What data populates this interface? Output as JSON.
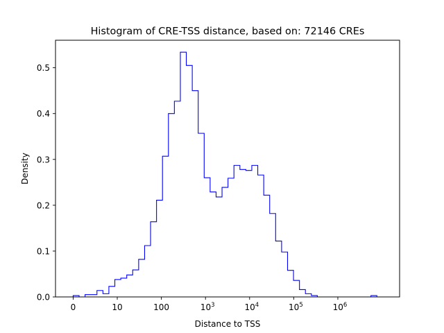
{
  "chart_data": {
    "type": "histogram-step",
    "title": "Histogram of CRE-TSS distance, based on: 72146 CREs",
    "xlabel": "Distance to TSS",
    "ylabel": "Density",
    "xscale": "log10(distance+1)",
    "xlim": [
      -0.4,
      7.4
    ],
    "ylim": [
      0,
      0.56
    ],
    "grid": false,
    "legend": "none",
    "line_color": "#0000ff",
    "x_ticks": [
      {
        "value": 0,
        "label": "0"
      },
      {
        "value": 1,
        "label": "10"
      },
      {
        "value": 2,
        "label": "100"
      },
      {
        "value": 3,
        "base": "10",
        "exp": "3"
      },
      {
        "value": 4,
        "base": "10",
        "exp": "4"
      },
      {
        "value": 5,
        "base": "10",
        "exp": "5"
      },
      {
        "value": 6,
        "base": "10",
        "exp": "6"
      }
    ],
    "y_ticks": [
      {
        "value": 0.0,
        "label": "0.0"
      },
      {
        "value": 0.1,
        "label": "0.1"
      },
      {
        "value": 0.2,
        "label": "0.2"
      },
      {
        "value": 0.3,
        "label": "0.3"
      },
      {
        "value": 0.4,
        "label": "0.4"
      },
      {
        "value": 0.5,
        "label": "0.5"
      }
    ],
    "bin_edges": [
      0.0,
      0.135,
      0.27,
      0.405,
      0.54,
      0.675,
      0.81,
      0.945,
      1.08,
      1.215,
      1.35,
      1.485,
      1.62,
      1.755,
      1.89,
      2.025,
      2.16,
      2.295,
      2.43,
      2.565,
      2.7,
      2.835,
      2.97,
      3.105,
      3.24,
      3.375,
      3.51,
      3.645,
      3.78,
      3.915,
      4.05,
      4.185,
      4.32,
      4.455,
      4.59,
      4.725,
      4.86,
      4.995,
      5.13,
      5.265,
      5.4,
      5.535,
      5.67,
      5.805,
      5.94,
      6.075,
      6.21,
      6.345,
      6.48,
      6.615,
      6.75,
      6.885,
      7.02
    ],
    "densities": [
      0.003,
      0.0,
      0.005,
      0.005,
      0.014,
      0.007,
      0.023,
      0.038,
      0.041,
      0.048,
      0.059,
      0.082,
      0.112,
      0.164,
      0.211,
      0.307,
      0.4,
      0.427,
      0.534,
      0.505,
      0.45,
      0.357,
      0.26,
      0.229,
      0.218,
      0.239,
      0.259,
      0.287,
      0.278,
      0.276,
      0.287,
      0.266,
      0.222,
      0.182,
      0.122,
      0.098,
      0.058,
      0.036,
      0.016,
      0.007,
      0.003,
      0.0,
      0.0,
      0.0,
      0.0,
      0.0,
      0.0,
      0.0,
      0.0,
      0.0,
      0.003,
      0.0
    ]
  }
}
